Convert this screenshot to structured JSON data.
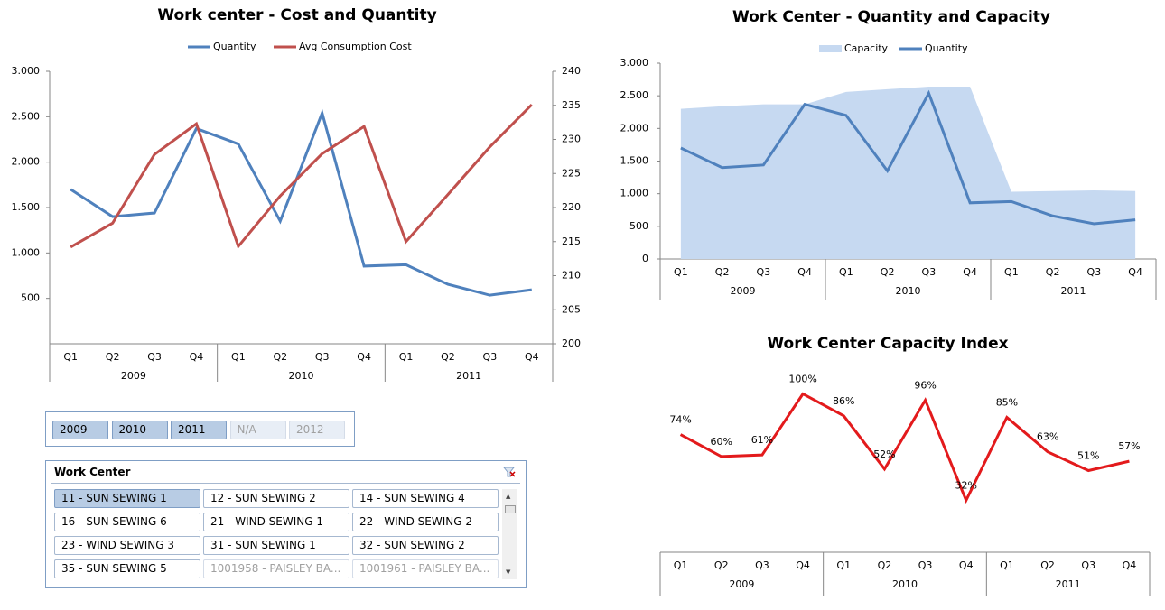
{
  "chart_data": [
    {
      "type": "line",
      "title": "Work center - Cost and Quantity",
      "categories": [
        "Q1",
        "Q2",
        "Q3",
        "Q4",
        "Q1",
        "Q2",
        "Q3",
        "Q4",
        "Q1",
        "Q2",
        "Q3",
        "Q4"
      ],
      "groups": [
        "2009",
        "2010",
        "2011"
      ],
      "series": [
        {
          "name": "Quantity",
          "color": "#4f81bd",
          "axis": "y",
          "values": [
            1700,
            1400,
            1440,
            2370,
            2200,
            1350,
            2540,
            855,
            870,
            655,
            535,
            595
          ]
        },
        {
          "name": "Avg Consumption Cost",
          "color": "#c0504d",
          "axis": "y2",
          "values": [
            214.2,
            217.7,
            227.8,
            232.3,
            214.3,
            221.7,
            227.9,
            231.9,
            215,
            221.9,
            228.9,
            235.1
          ]
        }
      ],
      "ylim": [
        0,
        3000
      ],
      "yticks": [
        {
          "value": 500,
          "label": "500"
        },
        {
          "value": 1000,
          "label": "1.000"
        },
        {
          "value": 1500,
          "label": "1.500"
        },
        {
          "value": 2000,
          "label": "2.000"
        },
        {
          "value": 2500,
          "label": "2.500"
        },
        {
          "value": 3000,
          "label": "3.000"
        }
      ],
      "y2lim": [
        200,
        240
      ],
      "y2ticks": [
        200,
        205,
        210,
        215,
        220,
        225,
        230,
        235,
        240
      ],
      "grid": false
    },
    {
      "type": "area",
      "title": "Work Center - Quantity and Capacity",
      "categories": [
        "Q1",
        "Q2",
        "Q3",
        "Q4",
        "Q1",
        "Q2",
        "Q3",
        "Q4",
        "Q1",
        "Q2",
        "Q3",
        "Q4"
      ],
      "groups": [
        "2009",
        "2010",
        "2011"
      ],
      "series": [
        {
          "name": "Capacity",
          "color": "#c6d9f1",
          "kind": "area",
          "values": [
            2300,
            2340,
            2370,
            2370,
            2560,
            2600,
            2640,
            2640,
            1030,
            1040,
            1050,
            1040
          ]
        },
        {
          "name": "Quantity",
          "color": "#4f81bd",
          "kind": "line",
          "values": [
            1700,
            1400,
            1440,
            2370,
            2200,
            1350,
            2540,
            860,
            880,
            660,
            540,
            600
          ]
        }
      ],
      "ylim": [
        0,
        3000
      ],
      "yticks": [
        0,
        500,
        {
          "value": 1000,
          "label": "1.000"
        },
        {
          "value": 1500,
          "label": "1.500"
        },
        {
          "value": 2000,
          "label": "2.000"
        },
        {
          "value": 2500,
          "label": "2.500"
        },
        {
          "value": 3000,
          "label": "3.000"
        }
      ],
      "grid": false
    },
    {
      "type": "line",
      "title": "Work Center Capacity Index",
      "categories": [
        "Q1",
        "Q2",
        "Q3",
        "Q4",
        "Q1",
        "Q2",
        "Q3",
        "Q4",
        "Q1",
        "Q2",
        "Q3",
        "Q4"
      ],
      "groups": [
        "2009",
        "2010",
        "2011"
      ],
      "color": "#e31a1c",
      "values": [
        74,
        60,
        61,
        100,
        86,
        52,
        96,
        32,
        85,
        63,
        51,
        57
      ],
      "value_labels": [
        "74%",
        "60%",
        "61%",
        "100%",
        "86%",
        "52%",
        "96%",
        "32%",
        "85%",
        "63%",
        "51%",
        "57%"
      ]
    }
  ],
  "year_slicer": {
    "items": [
      {
        "label": "2009",
        "state": "selected"
      },
      {
        "label": "2010",
        "state": "selected"
      },
      {
        "label": "2011",
        "state": "selected"
      },
      {
        "label": "N/A",
        "state": "unavailable"
      },
      {
        "label": "2012",
        "state": "unavailable"
      }
    ]
  },
  "work_center_slicer": {
    "title": "Work Center",
    "items": [
      {
        "label": "11 - SUN SEWING 1",
        "state": "selected"
      },
      {
        "label": "12 - SUN SEWING 2",
        "state": "normal"
      },
      {
        "label": "14 - SUN SEWING 4",
        "state": "normal"
      },
      {
        "label": "16 - SUN SEWING 6",
        "state": "normal"
      },
      {
        "label": "21 - WIND SEWING 1",
        "state": "normal"
      },
      {
        "label": "22 - WIND SEWING 2",
        "state": "normal"
      },
      {
        "label": "23 - WIND SEWING 3",
        "state": "normal"
      },
      {
        "label": "31 - SUN SEWING 1",
        "state": "normal"
      },
      {
        "label": "32 - SUN SEWING 2",
        "state": "normal"
      },
      {
        "label": "35 - SUN SEWING 5",
        "state": "normal"
      },
      {
        "label": "1001958 - PAISLEY BA...",
        "state": "unavailable"
      },
      {
        "label": "1001961 - PAISLEY BA...",
        "state": "unavailable"
      }
    ]
  }
}
